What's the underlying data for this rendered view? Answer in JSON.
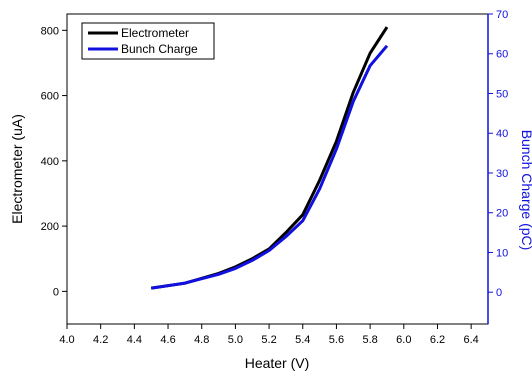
{
  "chart_data": {
    "type": "line",
    "xlabel": "Heater (V)",
    "ylabel_left": "Electrometer (uA)",
    "ylabel_right": "Bunch Charge (pC)",
    "xlim": [
      4.0,
      6.5
    ],
    "ylim_left": [
      -100,
      850
    ],
    "ylim_right": [
      -8,
      70
    ],
    "x_ticks": [
      "4.0",
      "4.2",
      "4.4",
      "4.6",
      "4.8",
      "5.0",
      "5.2",
      "5.4",
      "5.6",
      "5.8",
      "6.0",
      "6.2",
      "6.4"
    ],
    "y_ticks_left": [
      "0",
      "200",
      "400",
      "600",
      "800"
    ],
    "y_ticks_right": [
      "0",
      "10",
      "20",
      "30",
      "40",
      "50",
      "60",
      "70"
    ],
    "grid": false,
    "legend_position": "top-left",
    "series": [
      {
        "name": "Electrometer",
        "axis": "left",
        "color": "#000000",
        "x": [
          4.5,
          4.7,
          4.9,
          5.0,
          5.1,
          5.2,
          5.3,
          5.4,
          5.5,
          5.6,
          5.7,
          5.8,
          5.9
        ],
        "y": [
          10,
          25,
          55,
          75,
          100,
          130,
          180,
          235,
          340,
          460,
          610,
          730,
          810
        ]
      },
      {
        "name": "Bunch Charge",
        "axis": "right",
        "color": "#1010e0",
        "x": [
          4.5,
          4.7,
          4.9,
          5.0,
          5.1,
          5.2,
          5.3,
          5.4,
          5.5,
          5.6,
          5.7,
          5.8,
          5.9
        ],
        "y": [
          1,
          2.3,
          4.5,
          6,
          8,
          10.5,
          14,
          18,
          26,
          36,
          48,
          57,
          62
        ]
      }
    ]
  }
}
